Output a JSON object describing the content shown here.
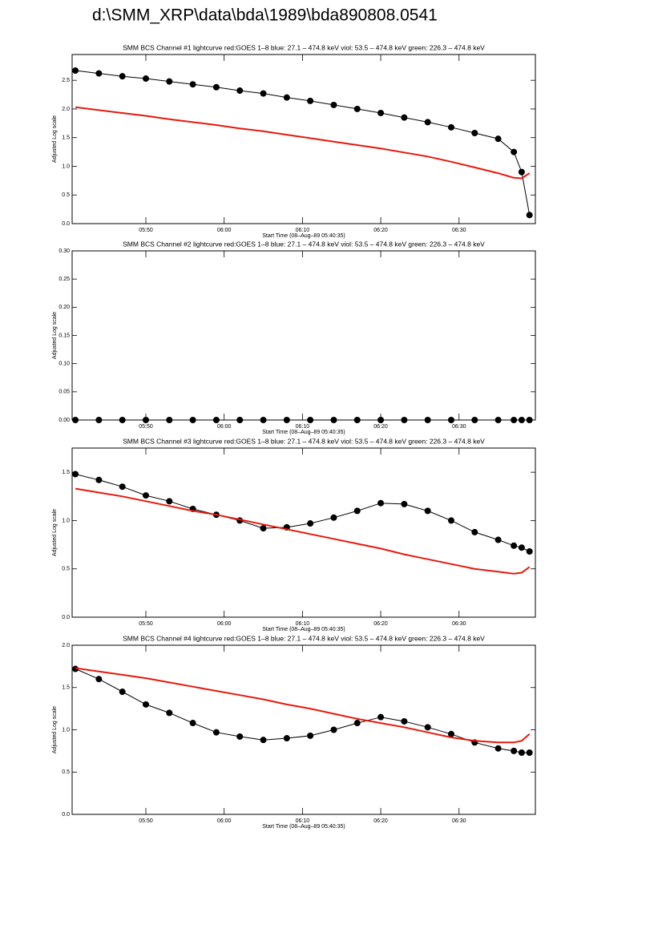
{
  "title": "d:\\SMM_XRP\\data\\bda\\1989\\bda890808.0541",
  "chart_data": [
    {
      "type": "line",
      "title": "SMM BCS Channel #1 lightcurve  red:GOES 1–8  blue: 27.1 – 474.8 keV  viol: 53.5 – 474.8 keV  green: 226.3 – 474.8 keV",
      "xlabel": "Start Time (08–Aug–89 05:40:35)",
      "ylabel": "Adjusted Log scale",
      "x": [
        "05:41",
        "05:44",
        "05:47",
        "05:50",
        "05:53",
        "05:56",
        "05:59",
        "06:02",
        "06:05",
        "06:08",
        "06:11",
        "06:14",
        "06:17",
        "06:20",
        "06:23",
        "06:26",
        "06:29",
        "06:32",
        "06:35",
        "06:37",
        "06:38",
        "06:39"
      ],
      "xlim": [
        "05:40:35",
        "06:39:45"
      ],
      "xticks": [
        "05:50",
        "06:00",
        "06:10",
        "06:20",
        "06:30"
      ],
      "ylim": [
        0,
        2.95
      ],
      "yticks": [
        {
          "value": 0,
          "label": "0.0"
        },
        0.5,
        {
          "value": 1,
          "label": "1.0"
        },
        1.5,
        {
          "value": 2,
          "label": "2.0"
        },
        2.5
      ],
      "series": [
        {
          "color": "#000000",
          "values": [
            2.67,
            2.62,
            2.57,
            2.53,
            2.48,
            2.43,
            2.38,
            2.32,
            2.27,
            2.2,
            2.14,
            2.07,
            2.0,
            1.93,
            1.85,
            1.77,
            1.68,
            1.58,
            1.48,
            1.25,
            0.9,
            0.15
          ]
        },
        {
          "color": "#e8180c",
          "values": [
            2.03,
            1.98,
            1.93,
            1.88,
            1.82,
            1.77,
            1.72,
            1.66,
            1.61,
            1.55,
            1.49,
            1.43,
            1.37,
            1.31,
            1.24,
            1.17,
            1.08,
            0.98,
            0.88,
            0.8,
            0.79,
            0.88
          ]
        }
      ]
    },
    {
      "type": "line",
      "title": "SMM BCS Channel #2 lightcurve  red:GOES 1–8  blue: 27.1 – 474.8 keV  viol: 53.5 – 474.8 keV  green: 226.3 – 474.8 keV",
      "xlabel": "Start Time (08–Aug–89 05:40:35)",
      "ylabel": "Adjusted Log scale",
      "x": [
        "05:41",
        "05:44",
        "05:47",
        "05:50",
        "05:53",
        "05:56",
        "05:59",
        "06:02",
        "06:05",
        "06:08",
        "06:11",
        "06:14",
        "06:17",
        "06:20",
        "06:23",
        "06:26",
        "06:29",
        "06:32",
        "06:35",
        "06:37",
        "06:38",
        "06:39"
      ],
      "xlim": [
        "05:40:35",
        "06:39:45"
      ],
      "xticks": [
        "05:50",
        "06:00",
        "06:10",
        "06:20",
        "06:30"
      ],
      "ylim": [
        0,
        0.3
      ],
      "yticks": [
        {
          "value": 0,
          "label": "0.00"
        },
        0.05,
        {
          "value": 0.1,
          "label": "0.10"
        },
        0.15,
        {
          "value": 0.2,
          "label": "0.20"
        },
        0.25,
        {
          "value": 0.3,
          "label": "0.30"
        }
      ],
      "series": [
        {
          "color": "#000000",
          "values": [
            0,
            0,
            0,
            0,
            0,
            0,
            0,
            0,
            0,
            0,
            0,
            0,
            0,
            0,
            0,
            0,
            0,
            0,
            0,
            0,
            0,
            0
          ]
        }
      ]
    },
    {
      "type": "line",
      "title": "SMM BCS Channel #3 lightcurve  red:GOES 1–8  blue: 27.1 – 474.8 keV  viol: 53.5 – 474.8 keV  green: 226.3 – 474.8 keV",
      "xlabel": "Start Time (08–Aug–89 05:40:35)",
      "ylabel": "Adjusted Log scale",
      "x": [
        "05:41",
        "05:44",
        "05:47",
        "05:50",
        "05:53",
        "05:56",
        "05:59",
        "06:02",
        "06:05",
        "06:08",
        "06:11",
        "06:14",
        "06:17",
        "06:20",
        "06:23",
        "06:26",
        "06:29",
        "06:32",
        "06:35",
        "06:37",
        "06:38",
        "06:39"
      ],
      "xlim": [
        "05:40:35",
        "06:39:45"
      ],
      "xticks": [
        "05:50",
        "06:00",
        "06:10",
        "06:20",
        "06:30"
      ],
      "ylim": [
        0,
        1.75
      ],
      "yticks": [
        {
          "value": 0,
          "label": "0.0"
        },
        0.5,
        {
          "value": 1,
          "label": "1.0"
        },
        1.5
      ],
      "series": [
        {
          "color": "#000000",
          "values": [
            1.48,
            1.42,
            1.35,
            1.26,
            1.2,
            1.12,
            1.06,
            1.0,
            0.92,
            0.93,
            0.97,
            1.03,
            1.1,
            1.18,
            1.17,
            1.1,
            1.0,
            0.88,
            0.8,
            0.74,
            0.72,
            0.68
          ]
        },
        {
          "color": "#e8180c",
          "values": [
            1.33,
            1.29,
            1.25,
            1.2,
            1.15,
            1.1,
            1.06,
            1.01,
            0.96,
            0.91,
            0.86,
            0.81,
            0.76,
            0.71,
            0.65,
            0.6,
            0.55,
            0.5,
            0.47,
            0.45,
            0.46,
            0.52
          ]
        }
      ]
    },
    {
      "type": "line",
      "title": "SMM BCS Channel #4 lightcurve  red:GOES 1–8  blue: 27.1 – 474.8 keV  viol: 53.5 – 474.8 keV  green: 226.3 – 474.8 keV",
      "xlabel": "Start Time (08–Aug–89 05:40:35)",
      "ylabel": "Adjusted Log scale",
      "x": [
        "05:41",
        "05:44",
        "05:47",
        "05:50",
        "05:53",
        "05:56",
        "05:59",
        "06:02",
        "06:05",
        "06:08",
        "06:11",
        "06:14",
        "06:17",
        "06:20",
        "06:23",
        "06:26",
        "06:29",
        "06:32",
        "06:35",
        "06:37",
        "06:38",
        "06:39"
      ],
      "xlim": [
        "05:40:35",
        "06:39:45"
      ],
      "xticks": [
        "05:50",
        "06:00",
        "06:10",
        "06:20",
        "06:30"
      ],
      "ylim": [
        0,
        2.0
      ],
      "yticks": [
        {
          "value": 0,
          "label": "0.0"
        },
        0.5,
        {
          "value": 1,
          "label": "1.0"
        },
        1.5,
        {
          "value": 2,
          "label": "2.0"
        }
      ],
      "series": [
        {
          "color": "#000000",
          "values": [
            1.72,
            1.6,
            1.45,
            1.3,
            1.2,
            1.08,
            0.97,
            0.92,
            0.88,
            0.9,
            0.93,
            1.0,
            1.08,
            1.15,
            1.1,
            1.03,
            0.95,
            0.85,
            0.78,
            0.75,
            0.73,
            0.73
          ]
        },
        {
          "color": "#e8180c",
          "values": [
            1.73,
            1.69,
            1.65,
            1.61,
            1.56,
            1.51,
            1.46,
            1.41,
            1.36,
            1.3,
            1.25,
            1.19,
            1.13,
            1.08,
            1.03,
            0.97,
            0.91,
            0.87,
            0.85,
            0.85,
            0.87,
            0.95
          ]
        }
      ]
    }
  ]
}
